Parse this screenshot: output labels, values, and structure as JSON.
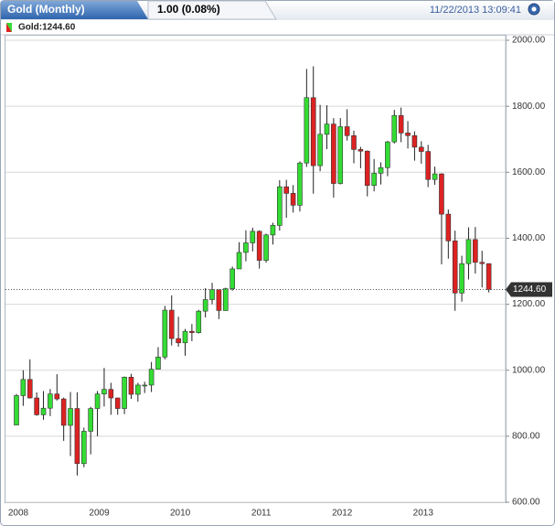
{
  "chart_data": {
    "type": "candlestick",
    "title": "Gold (Monthly)",
    "change": "1.00 (0.08%)",
    "timestamp": "11/22/2013 13:09:41",
    "legend": "Gold:1244.60",
    "categories": [
      "2008",
      null,
      null,
      null,
      null,
      null,
      null,
      null,
      null,
      null,
      null,
      null,
      "2009",
      null,
      null,
      null,
      null,
      null,
      null,
      null,
      null,
      null,
      null,
      null,
      "2010",
      null,
      null,
      null,
      null,
      null,
      null,
      null,
      null,
      null,
      null,
      null,
      "2011",
      null,
      null,
      null,
      null,
      null,
      null,
      null,
      null,
      null,
      null,
      null,
      "2012",
      null,
      null,
      null,
      null,
      null,
      null,
      null,
      null,
      null,
      null,
      null,
      "2013",
      null,
      null,
      null,
      null,
      null,
      null,
      null,
      null,
      null,
      null
    ],
    "series": [
      {
        "name": "Gold",
        "up_color": "#33dd33",
        "down_color": "#dd2222",
        "open": [
          834,
          923,
          972,
          916,
          865,
          885,
          928,
          913,
          833,
          884,
          717,
          815,
          884,
          928,
          942,
          916,
          884,
          979,
          927,
          955,
          955,
          1003,
          1040,
          1182,
          1096,
          1083,
          1118,
          1114,
          1179,
          1214,
          1244,
          1181,
          1247,
          1307,
          1357,
          1386,
          1421,
          1333,
          1410,
          1439,
          1556,
          1536,
          1500,
          1628,
          1826,
          1620,
          1715,
          1746,
          1566,
          1738,
          1711,
          1669,
          1664,
          1560,
          1597,
          1614,
          1692,
          1772,
          1719,
          1711,
          1676,
          1663,
          1578,
          1595,
          1473,
          1392,
          1234,
          1323,
          1396,
          1327,
          1323
        ],
        "high": [
          928,
          1000,
          1033,
          933,
          937,
          943,
          988,
          917,
          934,
          933,
          826,
          889,
          937,
          1007,
          962,
          916,
          981,
          989,
          962,
          965,
          1025,
          1070,
          1195,
          1227,
          1162,
          1125,
          1140,
          1183,
          1249,
          1265,
          1244,
          1250,
          1314,
          1388,
          1424,
          1432,
          1424,
          1414,
          1447,
          1576,
          1577,
          1561,
          1633,
          1913,
          1921,
          1804,
          1803,
          1764,
          1764,
          1791,
          1726,
          1677,
          1666,
          1640,
          1630,
          1695,
          1789,
          1796,
          1755,
          1724,
          1694,
          1683,
          1617,
          1597,
          1487,
          1423,
          1347,
          1433,
          1434,
          1362,
          1324
        ],
        "low": [
          834,
          892,
          914,
          862,
          850,
          861,
          908,
          786,
          740,
          681,
          706,
          745,
          800,
          890,
          865,
          865,
          867,
          913,
          905,
          931,
          934,
          1002,
          1033,
          1075,
          1071,
          1044,
          1088,
          1111,
          1160,
          1200,
          1155,
          1180,
          1241,
          1314,
          1330,
          1360,
          1308,
          1326,
          1381,
          1423,
          1462,
          1478,
          1481,
          1616,
          1535,
          1603,
          1670,
          1523,
          1563,
          1696,
          1627,
          1612,
          1527,
          1542,
          1563,
          1588,
          1687,
          1691,
          1672,
          1635,
          1626,
          1555,
          1562,
          1321,
          1338,
          1180,
          1208,
          1275,
          1293,
          1251,
          1236
        ],
        "close": [
          923,
          972,
          916,
          865,
          885,
          928,
          913,
          833,
          884,
          717,
          815,
          884,
          928,
          942,
          916,
          884,
          979,
          927,
          955,
          955,
          1003,
          1040,
          1182,
          1096,
          1083,
          1118,
          1114,
          1179,
          1214,
          1244,
          1181,
          1247,
          1307,
          1357,
          1386,
          1421,
          1333,
          1410,
          1439,
          1556,
          1536,
          1500,
          1628,
          1826,
          1620,
          1715,
          1746,
          1566,
          1738,
          1711,
          1669,
          1664,
          1560,
          1597,
          1614,
          1692,
          1772,
          1719,
          1711,
          1676,
          1663,
          1578,
          1595,
          1473,
          1392,
          1234,
          1323,
          1396,
          1327,
          1323,
          1244.6
        ]
      }
    ],
    "last_price": {
      "value": 1244.6,
      "label": "1244.60"
    },
    "ylim": [
      600,
      2000
    ],
    "yticks": [
      {
        "value": 600,
        "label": "600.00"
      },
      {
        "value": 800,
        "label": "800.00"
      },
      {
        "value": 1000,
        "label": "1000.00"
      },
      {
        "value": 1200,
        "label": "1200.00"
      },
      {
        "value": 1400,
        "label": "1400.00"
      },
      {
        "value": 1600,
        "label": "1600.00"
      },
      {
        "value": 1800,
        "label": "1800.00"
      },
      {
        "value": 2000,
        "label": "2000.00"
      }
    ],
    "grid": true
  }
}
